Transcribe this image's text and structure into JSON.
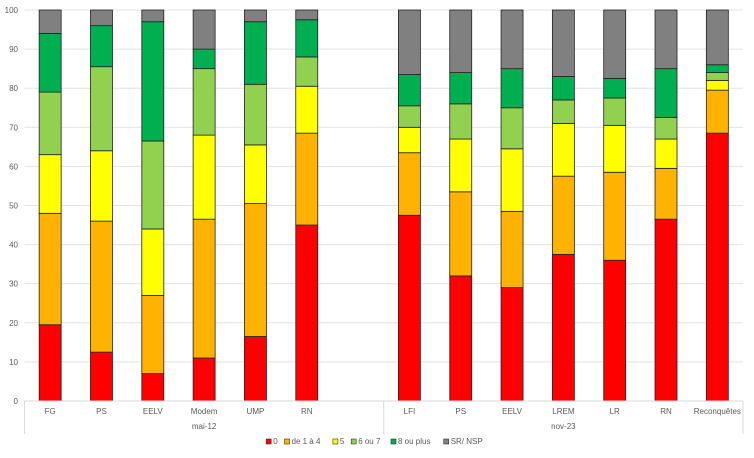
{
  "chart_data": {
    "type": "bar",
    "stacked": true,
    "title": "",
    "xlabel": "",
    "ylabel": "",
    "ylim": [
      0,
      100
    ],
    "yticks": [
      0,
      10,
      20,
      30,
      40,
      50,
      60,
      70,
      80,
      90,
      100
    ],
    "grid": true,
    "legend_position": "bottom",
    "groups": [
      {
        "label": "mai-12",
        "categories": [
          "FG",
          "PS",
          "EELV",
          "Modem",
          "UMP",
          "RN",
          ""
        ]
      },
      {
        "label": "nov-23",
        "categories": [
          "LFI",
          "PS",
          "EELV",
          "LREM",
          "LR",
          "RN",
          "Reconquêtes"
        ]
      }
    ],
    "categories": [
      "FG",
      "PS",
      "EELV",
      "Modem",
      "UMP",
      "RN",
      "",
      "LFI",
      "PS",
      "EELV",
      "LREM",
      "LR",
      "RN",
      "Reconquêtes"
    ],
    "series": [
      {
        "name": "0",
        "color": "#FF0000",
        "values": [
          19.5,
          12.5,
          7,
          11,
          16.5,
          45,
          null,
          47.5,
          32,
          29,
          37.5,
          36,
          46.5,
          68.5
        ]
      },
      {
        "name": "de 1 à 4",
        "color": "#FFB300",
        "values": [
          28.5,
          33.5,
          20,
          35.5,
          34,
          23.5,
          null,
          16,
          21.5,
          19.5,
          20,
          22.5,
          13,
          11
        ]
      },
      {
        "name": "5",
        "color": "#FFFF00",
        "values": [
          15,
          18,
          17,
          21.5,
          15,
          12,
          null,
          6.5,
          13.5,
          16,
          13.5,
          12,
          7.5,
          2.5
        ]
      },
      {
        "name": "6 ou 7",
        "color": "#92D050",
        "values": [
          16,
          21.5,
          22.5,
          17,
          15.5,
          7.5,
          null,
          5.5,
          9,
          10.5,
          6,
          7,
          5.5,
          2
        ]
      },
      {
        "name": "8 ou plus",
        "color": "#00B050",
        "values": [
          15,
          10.5,
          30.5,
          5,
          16,
          9.5,
          null,
          8,
          8,
          10,
          6,
          5,
          12.5,
          2
        ]
      },
      {
        "name": "SR/ NSP",
        "color": "#808080",
        "values": [
          6,
          4,
          3,
          10,
          3,
          2.5,
          null,
          16.5,
          16,
          15,
          17,
          17.5,
          15,
          14
        ]
      }
    ]
  }
}
